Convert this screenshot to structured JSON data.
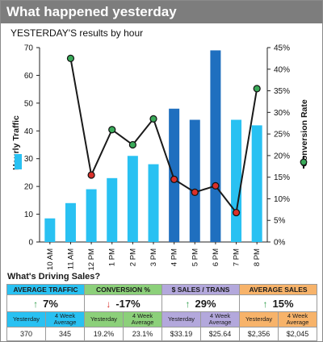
{
  "header": {
    "title": "What happened yesterday"
  },
  "chart_title": "YESTERDAY'S results by hour",
  "colors": {
    "bar_light": "#29c1f2",
    "bar_dark": "#1f6fbf",
    "line": "#1a1a1a",
    "marker_good": "#3aaa59",
    "marker_bad": "#d9302a",
    "header_bg": "#7d7d7d",
    "traffic_header": "#29c1f2",
    "conversion_header": "#8cd07a",
    "sales_trans_header": "#b3a8dc",
    "avg_sales_header": "#f7b36a",
    "arrow_up": "#2e9c4a",
    "arrow_down": "#d9302a"
  },
  "chart_data": {
    "type": "bar",
    "categories": [
      "10 AM",
      "11 AM",
      "12 PM",
      "1 PM",
      "2 PM",
      "3 PM",
      "4 PM",
      "5 PM",
      "6 PM",
      "7 PM",
      "8 PM"
    ],
    "series": [
      {
        "name": "Hourly Traffic",
        "type": "bar",
        "axis": "left",
        "values": [
          8.5,
          14,
          19,
          23,
          31,
          28,
          48,
          44,
          69,
          44,
          42
        ],
        "highlighted": [
          false,
          false,
          false,
          false,
          false,
          false,
          true,
          true,
          true,
          false,
          false
        ]
      },
      {
        "name": "Conversion Rate",
        "type": "line",
        "axis": "right",
        "values": [
          null,
          42.5,
          15.5,
          26,
          22.5,
          28.5,
          14.5,
          11.5,
          13,
          6.8,
          35.5
        ],
        "marker": [
          "",
          "good",
          "bad",
          "good",
          "good",
          "good",
          "bad",
          "bad",
          "bad",
          "bad",
          "good"
        ]
      }
    ],
    "ylabel": "Hourly Traffic",
    "y2label": "Conversion Rate",
    "ylim": [
      0,
      70
    ],
    "yticks": [
      0,
      10,
      20,
      30,
      40,
      50,
      60,
      70
    ],
    "y2lim": [
      0,
      45
    ],
    "y2ticks": [
      "0%",
      "5%",
      "10%",
      "15%",
      "20%",
      "25%",
      "30%",
      "35%",
      "40%",
      "45%"
    ],
    "grid": false
  },
  "driving": {
    "title": "What's Driving Sales?",
    "kpis": [
      {
        "label": "AVERAGE TRAFFIC",
        "change": "7%",
        "direction": "up",
        "col1_label": "Yesterday",
        "col2_label": "4 Week Average",
        "col1_value": "370",
        "col2_value": "345"
      },
      {
        "label": "CONVERSION %",
        "change": "-17%",
        "direction": "down",
        "col1_label": "Yesterday",
        "col2_label": "4 Week Average",
        "col1_value": "19.2%",
        "col2_value": "23.1%"
      },
      {
        "label": "$ SALES / TRANS",
        "change": "29%",
        "direction": "up",
        "col1_label": "Yesterday",
        "col2_label": "4 Week Average",
        "col1_value": "$33.19",
        "col2_value": "$25.64"
      },
      {
        "label": "AVERAGE SALES",
        "change": "15%",
        "direction": "up",
        "col1_label": "Yesterday",
        "col2_label": "4 Week Average",
        "col1_value": "$2,356",
        "col2_value": "$2,045"
      }
    ]
  }
}
